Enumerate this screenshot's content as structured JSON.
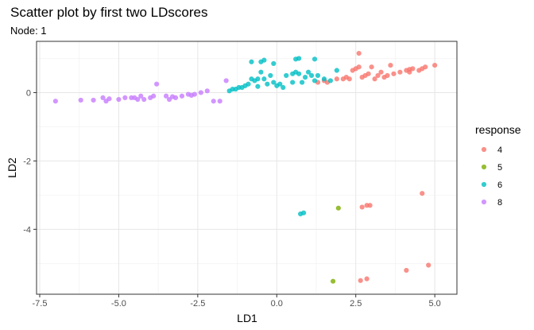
{
  "chart_data": {
    "type": "scatter",
    "title": "Scatter plot by first two LDscores",
    "subtitle": "Node: 1",
    "xlabel": "LD1",
    "ylabel": "LD2",
    "xlim": [
      -7.6,
      5.7
    ],
    "ylim": [
      -5.9,
      1.5
    ],
    "xticks": [
      -7.5,
      -5.0,
      -2.5,
      0.0,
      2.5,
      5.0
    ],
    "xtick_labels": [
      "-7.5",
      "-5.0",
      "-2.5",
      "0.0",
      "2.5",
      "5.0"
    ],
    "yticks": [
      -4,
      -2,
      0
    ],
    "ytick_labels": [
      "-4",
      "-2",
      "0"
    ],
    "grid": true,
    "legend": {
      "title": "response",
      "position": "right"
    },
    "series": [
      {
        "name": "4",
        "color": "#F8766D",
        "points": [
          [
            1.3,
            0.3
          ],
          [
            1.5,
            0.35
          ],
          [
            1.6,
            0.3
          ],
          [
            1.9,
            0.4
          ],
          [
            2.1,
            0.4
          ],
          [
            2.2,
            0.45
          ],
          [
            2.3,
            0.4
          ],
          [
            2.5,
            0.7
          ],
          [
            2.6,
            0.75
          ],
          [
            2.7,
            0.45
          ],
          [
            2.8,
            0.5
          ],
          [
            2.9,
            0.55
          ],
          [
            3.0,
            0.75
          ],
          [
            3.1,
            0.4
          ],
          [
            3.2,
            0.5
          ],
          [
            3.3,
            0.6
          ],
          [
            3.4,
            0.45
          ],
          [
            3.5,
            0.5
          ],
          [
            3.6,
            0.8
          ],
          [
            3.7,
            0.55
          ],
          [
            3.9,
            0.6
          ],
          [
            4.1,
            0.65
          ],
          [
            4.2,
            0.6
          ],
          [
            4.3,
            0.7
          ],
          [
            4.5,
            0.65
          ],
          [
            4.6,
            0.7
          ],
          [
            4.7,
            0.75
          ],
          [
            5.0,
            0.8
          ],
          [
            2.6,
            1.15
          ],
          [
            4.2,
            0.68
          ],
          [
            2.4,
            0.65
          ],
          [
            2.7,
            -3.35
          ],
          [
            2.85,
            -3.3
          ],
          [
            2.95,
            -3.3
          ],
          [
            4.6,
            -2.95
          ],
          [
            2.65,
            -5.5
          ],
          [
            2.85,
            -5.45
          ],
          [
            4.1,
            -5.2
          ],
          [
            4.8,
            -5.05
          ]
        ]
      },
      {
        "name": "5",
        "color": "#7CAE00",
        "points": [
          [
            1.95,
            -3.38
          ],
          [
            1.78,
            -5.52
          ]
        ]
      },
      {
        "name": "6",
        "color": "#00BFC4",
        "points": [
          [
            -1.5,
            0.05
          ],
          [
            -1.4,
            0.1
          ],
          [
            -1.3,
            0.1
          ],
          [
            -1.2,
            0.15
          ],
          [
            -1.1,
            0.15
          ],
          [
            -1.0,
            0.2
          ],
          [
            -0.9,
            0.25
          ],
          [
            -0.8,
            0.4
          ],
          [
            -0.7,
            0.35
          ],
          [
            -0.6,
            0.4
          ],
          [
            -0.5,
            0.6
          ],
          [
            -0.4,
            0.4
          ],
          [
            -0.3,
            0.25
          ],
          [
            -0.2,
            0.5
          ],
          [
            -0.1,
            0.3
          ],
          [
            0.0,
            0.2
          ],
          [
            0.1,
            0.25
          ],
          [
            0.3,
            0.5
          ],
          [
            0.5,
            0.3
          ],
          [
            0.6,
            0.6
          ],
          [
            0.7,
            0.55
          ],
          [
            0.8,
            0.3
          ],
          [
            0.9,
            0.45
          ],
          [
            1.0,
            0.6
          ],
          [
            1.1,
            0.5
          ],
          [
            1.2,
            0.35
          ],
          [
            1.3,
            0.5
          ],
          [
            1.5,
            0.4
          ],
          [
            1.7,
            0.35
          ],
          [
            1.9,
            0.65
          ],
          [
            -0.8,
            0.9
          ],
          [
            -0.5,
            0.9
          ],
          [
            -0.4,
            0.95
          ],
          [
            -0.1,
            0.85
          ],
          [
            0.6,
            0.98
          ],
          [
            0.7,
            1.0
          ],
          [
            1.2,
            0.98
          ],
          [
            0.5,
            0.55
          ],
          [
            0.2,
            0.15
          ],
          [
            -0.6,
            0.18
          ],
          [
            0.75,
            -3.55
          ],
          [
            0.85,
            -3.52
          ]
        ]
      },
      {
        "name": "8",
        "color": "#C77CFF",
        "points": [
          [
            -7.0,
            -0.25
          ],
          [
            -6.2,
            -0.22
          ],
          [
            -5.8,
            -0.22
          ],
          [
            -5.5,
            -0.15
          ],
          [
            -5.4,
            -0.25
          ],
          [
            -5.0,
            -0.2
          ],
          [
            -4.8,
            -0.15
          ],
          [
            -4.6,
            -0.15
          ],
          [
            -4.4,
            -0.2
          ],
          [
            -4.3,
            -0.1
          ],
          [
            -4.2,
            -0.2
          ],
          [
            -4.0,
            -0.15
          ],
          [
            -3.9,
            -0.1
          ],
          [
            -3.8,
            0.25
          ],
          [
            -3.5,
            -0.1
          ],
          [
            -3.4,
            -0.2
          ],
          [
            -3.2,
            -0.15
          ],
          [
            -3.0,
            -0.1
          ],
          [
            -2.8,
            -0.05
          ],
          [
            -2.6,
            -0.05
          ],
          [
            -2.4,
            0.0
          ],
          [
            -2.2,
            0.05
          ],
          [
            -2.0,
            -0.25
          ],
          [
            -1.8,
            -0.25
          ],
          [
            -1.6,
            0.35
          ],
          [
            -4.5,
            -0.15
          ],
          [
            -3.3,
            -0.12
          ],
          [
            -2.7,
            -0.08
          ],
          [
            -5.3,
            -0.18
          ]
        ]
      }
    ]
  }
}
